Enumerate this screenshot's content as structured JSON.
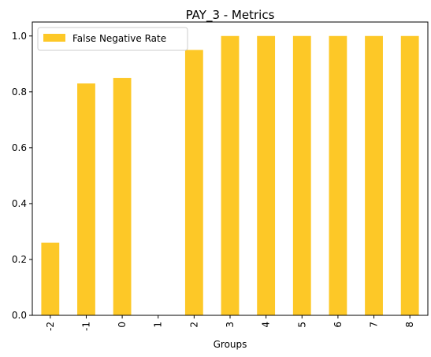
{
  "chart_data": {
    "type": "bar",
    "title": "PAY_3 - Metrics",
    "xlabel": "Groups",
    "ylabel": "",
    "categories": [
      "-2",
      "-1",
      "0",
      "1",
      "2",
      "3",
      "4",
      "5",
      "6",
      "7",
      "8"
    ],
    "series": [
      {
        "name": "False Negative Rate",
        "values": [
          0.26,
          0.83,
          0.85,
          0.0,
          0.95,
          1.0,
          1.0,
          1.0,
          1.0,
          1.0,
          1.0
        ],
        "color": "#fdc827"
      }
    ],
    "ylim": [
      0,
      1.05
    ],
    "yticks": [
      "0.0",
      "0.2",
      "0.4",
      "0.6",
      "0.8",
      "1.0"
    ],
    "grid": false,
    "legend_position": "upper-left"
  }
}
